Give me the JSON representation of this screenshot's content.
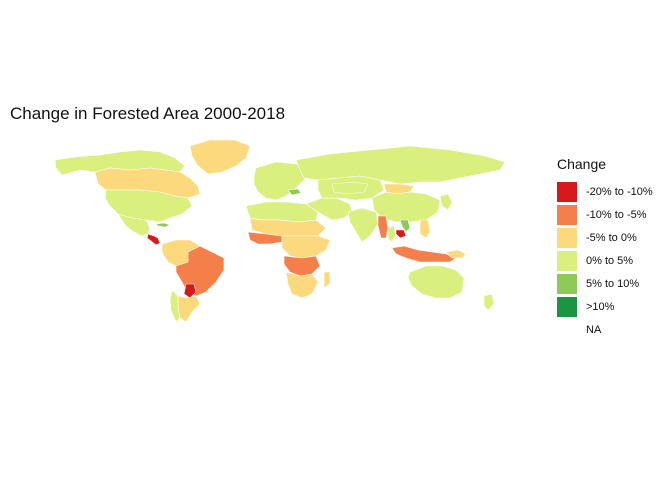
{
  "title": "Change in Forested Area 2000-2018",
  "legend": {
    "title": "Change",
    "items": [
      {
        "label": "-20% to -10%",
        "color": "#d7191c"
      },
      {
        "label": "-10% to -5%",
        "color": "#f57f4a"
      },
      {
        "label": "-5% to 0%",
        "color": "#fdd97e"
      },
      {
        "label": "0% to 5%",
        "color": "#d9ef7e"
      },
      {
        "label": "5% to 10%",
        "color": "#8ccb58"
      },
      {
        "label": ">10%",
        "color": "#1a9641"
      },
      {
        "label": "NA",
        "color": "transparent"
      }
    ]
  },
  "chart_data": {
    "type": "choropleth",
    "region": "world",
    "variable": "Change in Forested Area 2000-2018",
    "regions": [
      {
        "name": "North America (north)",
        "class": "0% to 5%"
      },
      {
        "name": "Canada",
        "class": "-5% to 0%"
      },
      {
        "name": "Greenland",
        "class": "-5% to 0%"
      },
      {
        "name": "United States",
        "class": "0% to 5%"
      },
      {
        "name": "Mexico",
        "class": "0% to 5%"
      },
      {
        "name": "Central America",
        "class": "-20% to -10%"
      },
      {
        "name": "Cuba",
        "class": "5% to 10%"
      },
      {
        "name": "South America (northwest)",
        "class": "-5% to 0%"
      },
      {
        "name": "Brazil",
        "class": "-10% to -5%"
      },
      {
        "name": "Paraguay",
        "class": "-20% to -10%"
      },
      {
        "name": "Argentina",
        "class": "-5% to 0%"
      },
      {
        "name": "Chile",
        "class": "0% to 5%"
      },
      {
        "name": "Europe",
        "class": "0% to 5%"
      },
      {
        "name": "Ukraine",
        "class": "5% to 10%"
      },
      {
        "name": "Russia",
        "class": "0% to 5%"
      },
      {
        "name": "North Africa",
        "class": "0% to 5%"
      },
      {
        "name": "Sahel",
        "class": "-5% to 0%"
      },
      {
        "name": "West Africa",
        "class": "-10% to -5%"
      },
      {
        "name": "Central Africa",
        "class": "-5% to 0%"
      },
      {
        "name": "Southern Central Africa",
        "class": "-10% to -5%"
      },
      {
        "name": "Southern Africa",
        "class": "-5% to 0%"
      },
      {
        "name": "Madagascar",
        "class": "-5% to 0%"
      },
      {
        "name": "Middle East",
        "class": "0% to 5%"
      },
      {
        "name": "Central Asia",
        "class": "0% to 5%"
      },
      {
        "name": "Kazakhstan",
        "class": "0% to 5%"
      },
      {
        "name": "Mongolia",
        "class": "-5% to 0%"
      },
      {
        "name": "China",
        "class": "0% to 5%"
      },
      {
        "name": "India",
        "class": "0% to 5%"
      },
      {
        "name": "Myanmar",
        "class": "-10% to -5%"
      },
      {
        "name": "Thailand",
        "class": "0% to 5%"
      },
      {
        "name": "Cambodia",
        "class": "-20% to -10%"
      },
      {
        "name": "Vietnam",
        "class": "5% to 10%"
      },
      {
        "name": "Indonesia",
        "class": "-10% to -5%"
      },
      {
        "name": "Papua New Guinea",
        "class": "-5% to 0%"
      },
      {
        "name": "Philippines",
        "class": "-5% to 0%"
      },
      {
        "name": "Japan",
        "class": "0% to 5%"
      },
      {
        "name": "Australia",
        "class": "0% to 5%"
      },
      {
        "name": "New Zealand",
        "class": "0% to 5%"
      }
    ]
  }
}
